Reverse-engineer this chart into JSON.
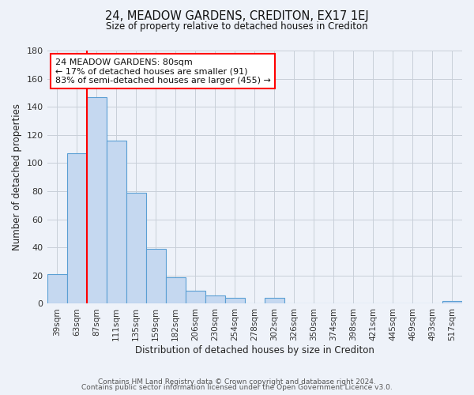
{
  "title": "24, MEADOW GARDENS, CREDITON, EX17 1EJ",
  "subtitle": "Size of property relative to detached houses in Crediton",
  "xlabel": "Distribution of detached houses by size in Crediton",
  "ylabel": "Number of detached properties",
  "bar_labels": [
    "39sqm",
    "63sqm",
    "87sqm",
    "111sqm",
    "135sqm",
    "159sqm",
    "182sqm",
    "206sqm",
    "230sqm",
    "254sqm",
    "278sqm",
    "302sqm",
    "326sqm",
    "350sqm",
    "374sqm",
    "398sqm",
    "421sqm",
    "445sqm",
    "469sqm",
    "493sqm",
    "517sqm"
  ],
  "bar_values": [
    21,
    107,
    147,
    116,
    79,
    39,
    19,
    9,
    6,
    4,
    0,
    4,
    0,
    0,
    0,
    0,
    0,
    0,
    0,
    0,
    2
  ],
  "bar_color": "#c5d8f0",
  "bar_edge_color": "#5a9fd4",
  "ylim": [
    0,
    180
  ],
  "yticks": [
    0,
    20,
    40,
    60,
    80,
    100,
    120,
    140,
    160,
    180
  ],
  "red_line_x": 1.5,
  "annotation_text_line1": "24 MEADOW GARDENS: 80sqm",
  "annotation_text_line2": "← 17% of detached houses are smaller (91)",
  "annotation_text_line3": "83% of semi-detached houses are larger (455) →",
  "footer_line1": "Contains HM Land Registry data © Crown copyright and database right 2024.",
  "footer_line2": "Contains public sector information licensed under the Open Government Licence v3.0.",
  "bg_color": "#eef2f9",
  "plot_bg_color": "#eef2f9",
  "grid_color": "#c8cfd8"
}
